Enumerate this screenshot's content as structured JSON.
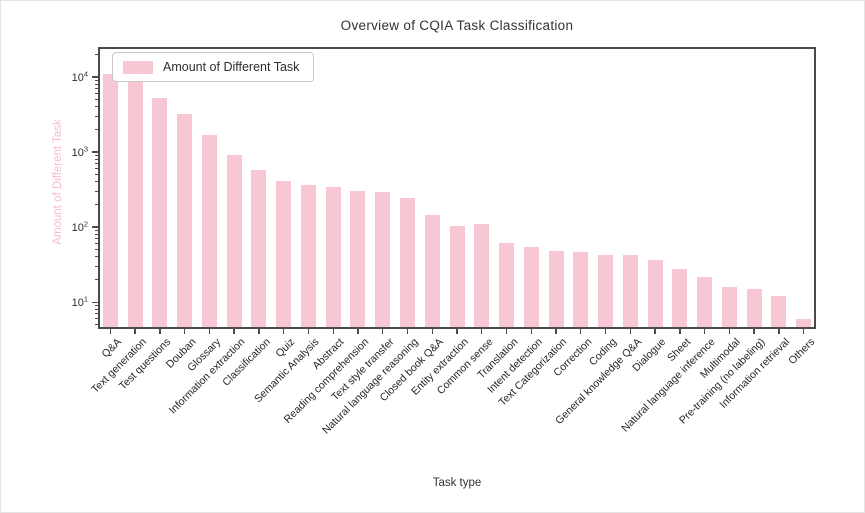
{
  "title": "Overview of CQIA Task Classification",
  "legend": {
    "label": "Amount of Different Task"
  },
  "axes": {
    "x_label": "Task type",
    "y_label": "Amount of Different Task"
  },
  "colors": {
    "bar": "#f7c8d3",
    "y_label_text": "#f4bccb",
    "axis": "#4a4a4a",
    "text": "#333333"
  },
  "chart_data": {
    "type": "bar",
    "title": "Overview of CQIA Task Classification",
    "xlabel": "Task type",
    "ylabel": "Amount of Different Task",
    "y_scale": "log",
    "ylim": [
      4.4,
      25000
    ],
    "y_ticks": [
      {
        "value": 10,
        "exp": 1
      },
      {
        "value": 100,
        "exp": 2
      },
      {
        "value": 1000,
        "exp": 3
      },
      {
        "value": 10000,
        "exp": 4
      }
    ],
    "grid": false,
    "legend_position": "upper-left",
    "bar_color": "#f7c8d3",
    "categories": [
      "Q&A",
      "Text generation",
      "Test questions",
      "Douban",
      "Glossary",
      "Information extraction",
      "Classification",
      "Quiz",
      "Semantic Analysis",
      "Abstract",
      "Reading comprehension",
      "Text style transfer",
      "Natural language reasoning",
      "Closed book Q&A",
      "Entity extraction",
      "Common sense",
      "Translation",
      "Intent detection",
      "Text Categorization",
      "Correction",
      "Coding",
      "General knowledge Q&A",
      "Dialogue",
      "Sheet",
      "Natural language inference",
      "Multimodal",
      "Pre-training (no labeling)",
      "Information retrieval",
      "Others"
    ],
    "values": [
      11000,
      10000,
      5200,
      3200,
      1700,
      900,
      570,
      410,
      360,
      340,
      300,
      295,
      245,
      145,
      105,
      110,
      62,
      55,
      48,
      47,
      43,
      42,
      37,
      28,
      22,
      16,
      15,
      12,
      6
    ]
  }
}
